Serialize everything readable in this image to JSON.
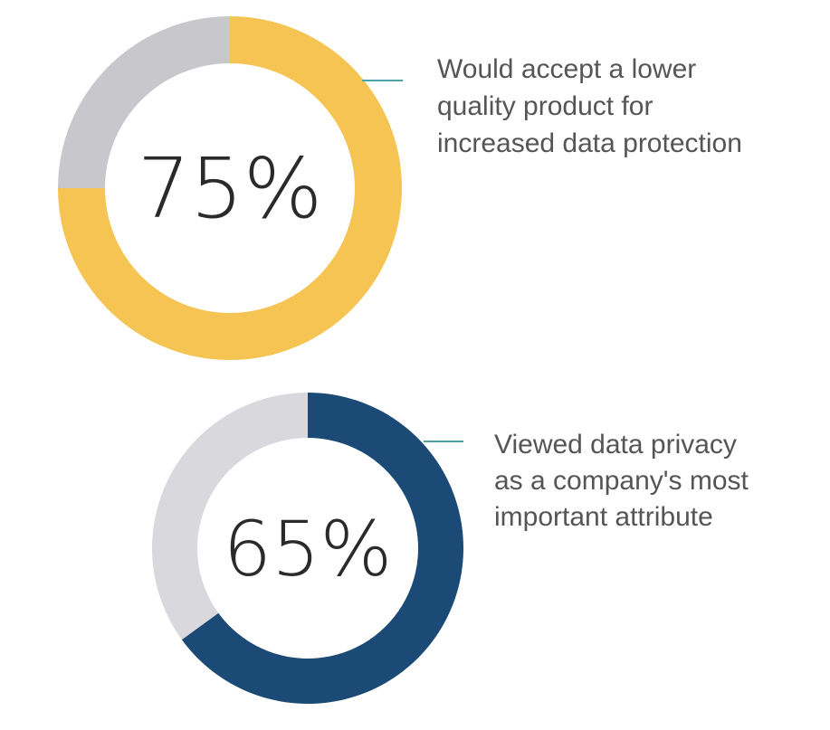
{
  "chart_data": [
    {
      "type": "pie",
      "style": "donut",
      "center_label": "75%",
      "caption_lines": [
        "Would accept a lower",
        "quality product for",
        "increased data protection"
      ],
      "slices": [
        {
          "label": "Would accept a lower quality product for increased data protection",
          "value": 75,
          "color": "#F5C452"
        },
        {
          "label": "",
          "value": 25,
          "color": "#C8C7CC"
        }
      ]
    },
    {
      "type": "pie",
      "style": "donut",
      "center_label": "65%",
      "caption_lines": [
        "Viewed data privacy",
        "as a company's most",
        "important attribute"
      ],
      "slices": [
        {
          "label": "Viewed data privacy as a company's most important attribute",
          "value": 65,
          "color": "#1A4A75"
        },
        {
          "label": "",
          "value": 35,
          "color": "#D8D8DD"
        }
      ]
    }
  ],
  "colors": {
    "leader_line": "#4FA3A8",
    "text": "#555555",
    "center_text": "#2a2a2a"
  }
}
